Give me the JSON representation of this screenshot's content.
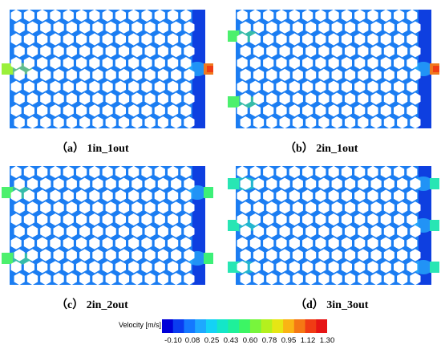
{
  "panels": [
    {
      "caption": "（a） 1in_1out",
      "inlets": 1,
      "outlets": 1
    },
    {
      "caption": "（b） 2in_1out",
      "inlets": 2,
      "outlets": 1
    },
    {
      "caption": "（c） 2in_2out",
      "inlets": 2,
      "outlets": 2
    },
    {
      "caption": "（d） 3in_3out",
      "inlets": 3,
      "outlets": 3
    }
  ],
  "legend": {
    "title": "Velocity [m/s]",
    "ticks": [
      "-0.10",
      "0.08",
      "0.25",
      "0.43",
      "0.60",
      "0.78",
      "0.95",
      "1.12",
      "1.30"
    ],
    "colors": [
      "#0000d8",
      "#0a3cf0",
      "#1478ff",
      "#1ea8ff",
      "#14d2f5",
      "#14e6c8",
      "#1ef09a",
      "#3cf564",
      "#78f53c",
      "#b4f01e",
      "#e6e614",
      "#fab414",
      "#f57814",
      "#f03c14",
      "#e61414"
    ]
  }
}
